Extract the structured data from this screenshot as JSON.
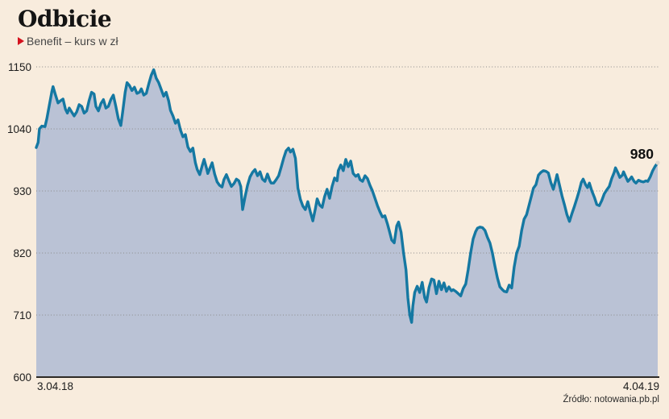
{
  "header": {
    "title": "Odbicie",
    "subtitle": "Benefit – kurs w zł"
  },
  "colors": {
    "background": "#f8ecdd",
    "area_fill": "#bac2d5",
    "line": "#1578a2",
    "gridline": "#8a8a8a",
    "baseline": "#2e2a26",
    "accent_red": "#d5121e",
    "text": "#1c1c1c"
  },
  "chart_data": {
    "type": "area",
    "title": "Odbicie",
    "subtitle": "Benefit – kurs w zł",
    "ylabel": "kurs w zł",
    "ylim": [
      600,
      1150
    ],
    "y_ticks": [
      1150,
      1040,
      930,
      820,
      710,
      600
    ],
    "x_start_label": "3.04.18",
    "x_end_label": "4.04.19",
    "last_value": 980,
    "last_value_label": "980",
    "source": "Źródło: notowania.pb.pl",
    "grid": "horizontal-dotted",
    "x_unit": "fraction of date range 3.04.18 to 4.04.19",
    "points": [
      [
        0.0,
        1007
      ],
      [
        0.003,
        1016
      ],
      [
        0.005,
        1040
      ],
      [
        0.009,
        1045
      ],
      [
        0.014,
        1044
      ],
      [
        0.017,
        1058
      ],
      [
        0.021,
        1082
      ],
      [
        0.025,
        1106
      ],
      [
        0.027,
        1115
      ],
      [
        0.031,
        1100
      ],
      [
        0.035,
        1086
      ],
      [
        0.039,
        1090
      ],
      [
        0.043,
        1093
      ],
      [
        0.047,
        1075
      ],
      [
        0.05,
        1068
      ],
      [
        0.053,
        1077
      ],
      [
        0.057,
        1070
      ],
      [
        0.061,
        1063
      ],
      [
        0.065,
        1070
      ],
      [
        0.069,
        1083
      ],
      [
        0.073,
        1080
      ],
      [
        0.077,
        1068
      ],
      [
        0.081,
        1072
      ],
      [
        0.085,
        1090
      ],
      [
        0.089,
        1105
      ],
      [
        0.093,
        1102
      ],
      [
        0.096,
        1080
      ],
      [
        0.1,
        1072
      ],
      [
        0.104,
        1085
      ],
      [
        0.108,
        1092
      ],
      [
        0.112,
        1077
      ],
      [
        0.116,
        1080
      ],
      [
        0.12,
        1092
      ],
      [
        0.124,
        1100
      ],
      [
        0.128,
        1080
      ],
      [
        0.132,
        1058
      ],
      [
        0.136,
        1046
      ],
      [
        0.139,
        1070
      ],
      [
        0.143,
        1105
      ],
      [
        0.146,
        1122
      ],
      [
        0.15,
        1117
      ],
      [
        0.154,
        1108
      ],
      [
        0.158,
        1114
      ],
      [
        0.162,
        1103
      ],
      [
        0.166,
        1105
      ],
      [
        0.169,
        1111
      ],
      [
        0.173,
        1100
      ],
      [
        0.177,
        1103
      ],
      [
        0.181,
        1120
      ],
      [
        0.185,
        1135
      ],
      [
        0.189,
        1145
      ],
      [
        0.193,
        1130
      ],
      [
        0.197,
        1122
      ],
      [
        0.201,
        1110
      ],
      [
        0.205,
        1098
      ],
      [
        0.209,
        1105
      ],
      [
        0.213,
        1090
      ],
      [
        0.216,
        1073
      ],
      [
        0.22,
        1063
      ],
      [
        0.224,
        1050
      ],
      [
        0.228,
        1056
      ],
      [
        0.232,
        1038
      ],
      [
        0.236,
        1026
      ],
      [
        0.24,
        1030
      ],
      [
        0.244,
        1008
      ],
      [
        0.248,
        1000
      ],
      [
        0.252,
        1006
      ],
      [
        0.256,
        980
      ],
      [
        0.259,
        968
      ],
      [
        0.263,
        959
      ],
      [
        0.267,
        975
      ],
      [
        0.27,
        986
      ],
      [
        0.274,
        970
      ],
      [
        0.276,
        961
      ],
      [
        0.28,
        972
      ],
      [
        0.283,
        980
      ],
      [
        0.287,
        960
      ],
      [
        0.291,
        946
      ],
      [
        0.295,
        940
      ],
      [
        0.299,
        937
      ],
      [
        0.302,
        950
      ],
      [
        0.306,
        959
      ],
      [
        0.31,
        948
      ],
      [
        0.314,
        938
      ],
      [
        0.318,
        943
      ],
      [
        0.322,
        951
      ],
      [
        0.326,
        948
      ],
      [
        0.329,
        938
      ],
      [
        0.332,
        897
      ],
      [
        0.336,
        920
      ],
      [
        0.34,
        940
      ],
      [
        0.344,
        955
      ],
      [
        0.348,
        963
      ],
      [
        0.352,
        968
      ],
      [
        0.356,
        957
      ],
      [
        0.36,
        964
      ],
      [
        0.364,
        951
      ],
      [
        0.368,
        947
      ],
      [
        0.372,
        960
      ],
      [
        0.376,
        948
      ],
      [
        0.378,
        944
      ],
      [
        0.382,
        944
      ],
      [
        0.386,
        950
      ],
      [
        0.39,
        957
      ],
      [
        0.394,
        972
      ],
      [
        0.398,
        988
      ],
      [
        0.402,
        1001
      ],
      [
        0.406,
        1006
      ],
      [
        0.409,
        999
      ],
      [
        0.413,
        1004
      ],
      [
        0.417,
        988
      ],
      [
        0.421,
        935
      ],
      [
        0.425,
        915
      ],
      [
        0.429,
        903
      ],
      [
        0.433,
        897
      ],
      [
        0.437,
        911
      ],
      [
        0.441,
        893
      ],
      [
        0.445,
        877
      ],
      [
        0.449,
        898
      ],
      [
        0.452,
        916
      ],
      [
        0.456,
        905
      ],
      [
        0.46,
        901
      ],
      [
        0.464,
        920
      ],
      [
        0.468,
        933
      ],
      [
        0.472,
        917
      ],
      [
        0.476,
        938
      ],
      [
        0.48,
        953
      ],
      [
        0.484,
        948
      ],
      [
        0.486,
        966
      ],
      [
        0.49,
        976
      ],
      [
        0.494,
        966
      ],
      [
        0.498,
        986
      ],
      [
        0.502,
        973
      ],
      [
        0.506,
        983
      ],
      [
        0.51,
        961
      ],
      [
        0.514,
        956
      ],
      [
        0.518,
        959
      ],
      [
        0.521,
        950
      ],
      [
        0.525,
        947
      ],
      [
        0.529,
        957
      ],
      [
        0.533,
        952
      ],
      [
        0.537,
        940
      ],
      [
        0.541,
        930
      ],
      [
        0.545,
        917
      ],
      [
        0.549,
        904
      ],
      [
        0.553,
        893
      ],
      [
        0.557,
        884
      ],
      [
        0.561,
        886
      ],
      [
        0.565,
        872
      ],
      [
        0.568,
        860
      ],
      [
        0.572,
        843
      ],
      [
        0.576,
        838
      ],
      [
        0.58,
        868
      ],
      [
        0.583,
        875
      ],
      [
        0.587,
        857
      ],
      [
        0.591,
        820
      ],
      [
        0.595,
        790
      ],
      [
        0.598,
        740
      ],
      [
        0.601,
        710
      ],
      [
        0.604,
        697
      ],
      [
        0.606,
        726
      ],
      [
        0.609,
        750
      ],
      [
        0.613,
        761
      ],
      [
        0.617,
        750
      ],
      [
        0.621,
        768
      ],
      [
        0.625,
        741
      ],
      [
        0.628,
        733
      ],
      [
        0.632,
        759
      ],
      [
        0.636,
        774
      ],
      [
        0.64,
        772
      ],
      [
        0.644,
        748
      ],
      [
        0.648,
        770
      ],
      [
        0.652,
        755
      ],
      [
        0.656,
        767
      ],
      [
        0.66,
        752
      ],
      [
        0.664,
        760
      ],
      [
        0.668,
        753
      ],
      [
        0.671,
        755
      ],
      [
        0.675,
        752
      ],
      [
        0.679,
        748
      ],
      [
        0.683,
        744
      ],
      [
        0.687,
        757
      ],
      [
        0.691,
        765
      ],
      [
        0.695,
        790
      ],
      [
        0.699,
        820
      ],
      [
        0.703,
        845
      ],
      [
        0.707,
        858
      ],
      [
        0.71,
        864
      ],
      [
        0.714,
        866
      ],
      [
        0.718,
        865
      ],
      [
        0.722,
        860
      ],
      [
        0.726,
        848
      ],
      [
        0.73,
        838
      ],
      [
        0.734,
        820
      ],
      [
        0.738,
        797
      ],
      [
        0.742,
        776
      ],
      [
        0.746,
        760
      ],
      [
        0.75,
        755
      ],
      [
        0.753,
        752
      ],
      [
        0.757,
        751
      ],
      [
        0.761,
        763
      ],
      [
        0.765,
        758
      ],
      [
        0.769,
        795
      ],
      [
        0.773,
        820
      ],
      [
        0.777,
        832
      ],
      [
        0.781,
        860
      ],
      [
        0.785,
        880
      ],
      [
        0.789,
        888
      ],
      [
        0.793,
        905
      ],
      [
        0.797,
        922
      ],
      [
        0.8,
        935
      ],
      [
        0.804,
        941
      ],
      [
        0.808,
        958
      ],
      [
        0.812,
        963
      ],
      [
        0.816,
        966
      ],
      [
        0.82,
        965
      ],
      [
        0.824,
        962
      ],
      [
        0.828,
        945
      ],
      [
        0.832,
        933
      ],
      [
        0.836,
        950
      ],
      [
        0.838,
        959
      ],
      [
        0.842,
        940
      ],
      [
        0.846,
        921
      ],
      [
        0.85,
        905
      ],
      [
        0.854,
        888
      ],
      [
        0.858,
        876
      ],
      [
        0.862,
        890
      ],
      [
        0.866,
        903
      ],
      [
        0.87,
        917
      ],
      [
        0.874,
        932
      ],
      [
        0.877,
        945
      ],
      [
        0.88,
        951
      ],
      [
        0.884,
        941
      ],
      [
        0.887,
        936
      ],
      [
        0.89,
        944
      ],
      [
        0.894,
        930
      ],
      [
        0.898,
        919
      ],
      [
        0.902,
        906
      ],
      [
        0.906,
        904
      ],
      [
        0.91,
        913
      ],
      [
        0.914,
        925
      ],
      [
        0.918,
        932
      ],
      [
        0.922,
        938
      ],
      [
        0.926,
        952
      ],
      [
        0.93,
        963
      ],
      [
        0.932,
        971
      ],
      [
        0.936,
        962
      ],
      [
        0.939,
        954
      ],
      [
        0.943,
        958
      ],
      [
        0.945,
        964
      ],
      [
        0.949,
        954
      ],
      [
        0.952,
        947
      ],
      [
        0.956,
        952
      ],
      [
        0.958,
        955
      ],
      [
        0.962,
        947
      ],
      [
        0.965,
        944
      ],
      [
        0.969,
        949
      ],
      [
        0.973,
        947
      ],
      [
        0.977,
        946
      ],
      [
        0.981,
        948
      ],
      [
        0.984,
        947
      ],
      [
        0.988,
        955
      ],
      [
        0.992,
        966
      ],
      [
        0.996,
        974
      ],
      [
        1.0,
        980
      ]
    ]
  }
}
